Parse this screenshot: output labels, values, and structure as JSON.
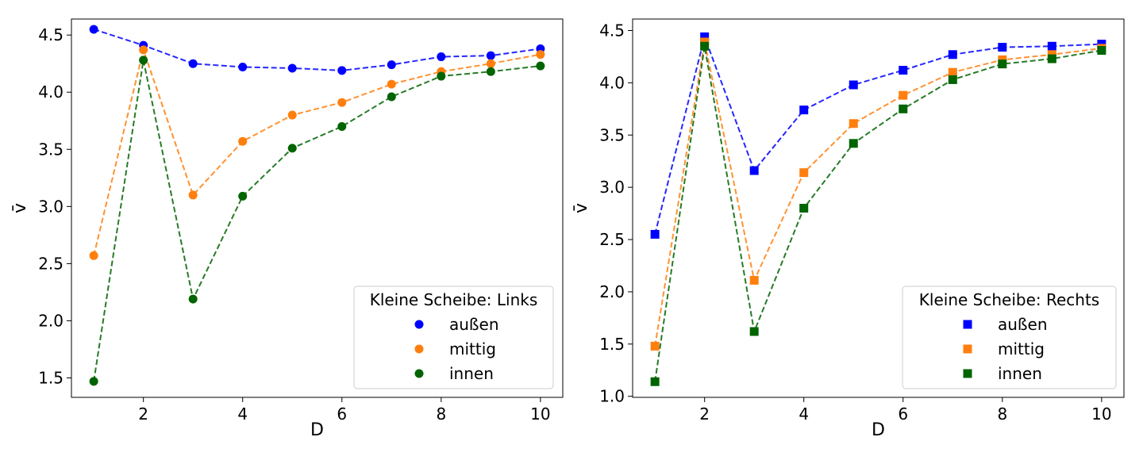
{
  "chart_data": [
    {
      "type": "line",
      "marker": "circle",
      "xlabel": "D",
      "ylabel": "v̄",
      "xlim": [
        0.55,
        10.45
      ],
      "ylim": [
        1.33,
        4.64
      ],
      "xticks": [
        2,
        4,
        6,
        8,
        10
      ],
      "yticks": [
        1.5,
        2.0,
        2.5,
        3.0,
        3.5,
        4.0,
        4.5
      ],
      "xtick_labels": [
        "2",
        "4",
        "6",
        "8",
        "10"
      ],
      "ytick_labels": [
        "1.5",
        "2.0",
        "2.5",
        "3.0",
        "3.5",
        "4.0",
        "4.5"
      ],
      "grid": false,
      "legend": {
        "title": "Kleine Scheibe: Links",
        "placement": "lower-right"
      },
      "x": [
        1,
        2,
        3,
        4,
        5,
        6,
        7,
        8,
        9,
        10
      ],
      "series": [
        {
          "name": "außen",
          "color": "#0000ff",
          "values": [
            4.55,
            4.41,
            4.25,
            4.22,
            4.21,
            4.19,
            4.24,
            4.31,
            4.32,
            4.38
          ]
        },
        {
          "name": "mittig",
          "color": "#ff7f0e",
          "values": [
            2.57,
            4.37,
            3.1,
            3.57,
            3.8,
            3.91,
            4.07,
            4.18,
            4.25,
            4.33
          ]
        },
        {
          "name": "innen",
          "color": "#006400",
          "values": [
            1.47,
            4.28,
            2.19,
            3.09,
            3.51,
            3.7,
            3.96,
            4.14,
            4.18,
            4.23
          ]
        }
      ]
    },
    {
      "type": "line",
      "marker": "square",
      "xlabel": "D",
      "ylabel": "v̄",
      "xlim": [
        0.55,
        10.45
      ],
      "ylim": [
        0.99,
        4.61
      ],
      "xticks": [
        2,
        4,
        6,
        8,
        10
      ],
      "yticks": [
        1.0,
        1.5,
        2.0,
        2.5,
        3.0,
        3.5,
        4.0,
        4.5
      ],
      "xtick_labels": [
        "2",
        "4",
        "6",
        "8",
        "10"
      ],
      "ytick_labels": [
        "1.0",
        "1.5",
        "2.0",
        "2.5",
        "3.0",
        "3.5",
        "4.0",
        "4.5"
      ],
      "grid": false,
      "legend": {
        "title": "Kleine Scheibe: Rechts",
        "placement": "lower-right"
      },
      "x": [
        1,
        2,
        3,
        4,
        5,
        6,
        7,
        8,
        9,
        10
      ],
      "series": [
        {
          "name": "außen",
          "color": "#0000ff",
          "values": [
            2.55,
            4.44,
            3.16,
            3.74,
            3.98,
            4.12,
            4.27,
            4.34,
            4.35,
            4.37
          ]
        },
        {
          "name": "mittig",
          "color": "#ff7f0e",
          "values": [
            1.48,
            4.39,
            2.11,
            3.14,
            3.61,
            3.88,
            4.1,
            4.22,
            4.27,
            4.33
          ]
        },
        {
          "name": "innen",
          "color": "#006400",
          "values": [
            1.14,
            4.35,
            1.62,
            2.8,
            3.42,
            3.75,
            4.03,
            4.18,
            4.23,
            4.31
          ]
        }
      ]
    }
  ]
}
